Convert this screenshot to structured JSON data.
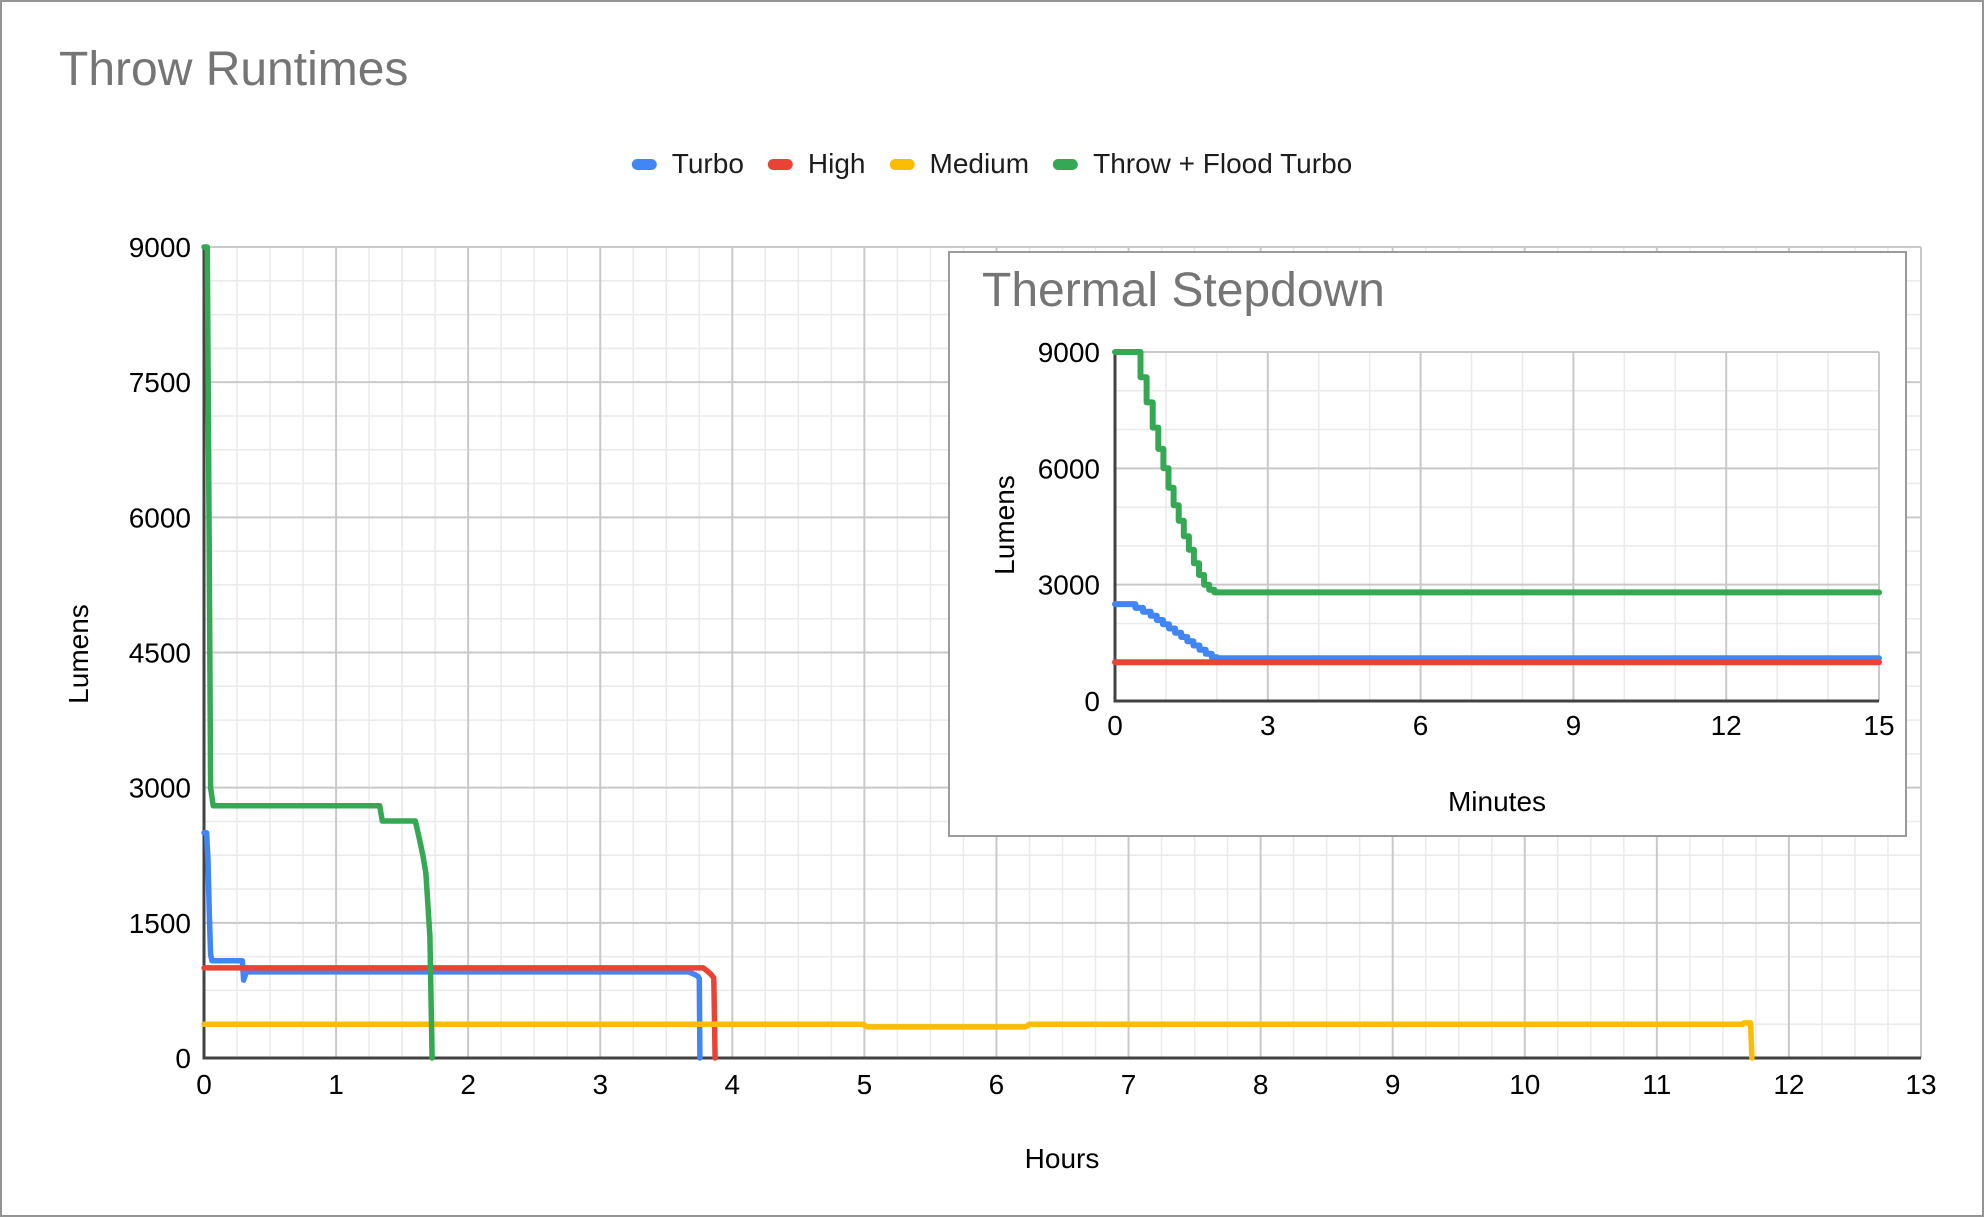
{
  "legend": {
    "position": "top"
  },
  "chart_data": [
    {
      "type": "line",
      "title": "Throw Runtimes",
      "xlabel": "Hours",
      "ylabel": "Lumens",
      "xlim": [
        0,
        13
      ],
      "ylim": [
        0,
        9000
      ],
      "x_major_ticks": [
        0,
        1,
        2,
        3,
        4,
        5,
        6,
        7,
        8,
        9,
        10,
        11,
        12,
        13
      ],
      "y_major_ticks": [
        0,
        1500,
        3000,
        4500,
        6000,
        7500,
        9000
      ],
      "x_minor_step": 0.25,
      "y_minor_step": 375,
      "grid": true,
      "legend_position": "top",
      "series": [
        {
          "name": "Turbo",
          "color": "#4285F4",
          "points": [
            [
              0,
              2500
            ],
            [
              0.02,
              2500
            ],
            [
              0.03,
              2200
            ],
            [
              0.04,
              1600
            ],
            [
              0.05,
              1150
            ],
            [
              0.06,
              1080
            ],
            [
              0.29,
              1080
            ],
            [
              0.3,
              865
            ],
            [
              0.32,
              955
            ],
            [
              3.67,
              955
            ],
            [
              3.71,
              930
            ],
            [
              3.74,
              905
            ],
            [
              3.75,
              880
            ],
            [
              3.755,
              0
            ]
          ]
        },
        {
          "name": "High",
          "color": "#EA4335",
          "points": [
            [
              0,
              1000
            ],
            [
              3.78,
              1000
            ],
            [
              3.81,
              965
            ],
            [
              3.84,
              925
            ],
            [
              3.86,
              890
            ],
            [
              3.87,
              0
            ]
          ]
        },
        {
          "name": "Medium",
          "color": "#FBBC04",
          "points": [
            [
              0,
              375
            ],
            [
              4.99,
              375
            ],
            [
              5.02,
              345
            ],
            [
              6.22,
              345
            ],
            [
              6.25,
              375
            ],
            [
              11.65,
              375
            ],
            [
              11.66,
              390
            ],
            [
              11.71,
              390
            ],
            [
              11.72,
              0
            ]
          ]
        },
        {
          "name": "Throw + Flood Turbo",
          "color": "#34A853",
          "points": [
            [
              0,
              9000
            ],
            [
              0.025,
              9000
            ],
            [
              0.04,
              5500
            ],
            [
              0.05,
              3000
            ],
            [
              0.07,
              2800
            ],
            [
              1.33,
              2800
            ],
            [
              1.35,
              2630
            ],
            [
              1.6,
              2630
            ],
            [
              1.62,
              2500
            ],
            [
              1.64,
              2370
            ],
            [
              1.66,
              2230
            ],
            [
              1.68,
              2050
            ],
            [
              1.695,
              1700
            ],
            [
              1.71,
              1350
            ],
            [
              1.727,
              0
            ]
          ]
        }
      ]
    },
    {
      "type": "line",
      "title": "Thermal Stepdown",
      "xlabel": "Minutes",
      "ylabel": "Lumens",
      "xlim": [
        0,
        15
      ],
      "ylim": [
        0,
        9000
      ],
      "x_major_ticks": [
        0,
        3,
        6,
        9,
        12,
        15
      ],
      "y_major_ticks": [
        0,
        3000,
        6000,
        9000
      ],
      "x_minor_step": 1,
      "y_minor_step": 1000,
      "grid": true,
      "legend_position": "none",
      "series": [
        {
          "name": "Turbo",
          "color": "#4285F4",
          "points": [
            [
              0,
              2500
            ],
            [
              0.4,
              2500
            ],
            [
              0.4,
              2400
            ],
            [
              0.55,
              2400
            ],
            [
              0.55,
              2300
            ],
            [
              0.7,
              2300
            ],
            [
              0.7,
              2200
            ],
            [
              0.82,
              2200
            ],
            [
              0.82,
              2090
            ],
            [
              0.94,
              2090
            ],
            [
              0.94,
              1980
            ],
            [
              1.06,
              1980
            ],
            [
              1.06,
              1870
            ],
            [
              1.18,
              1870
            ],
            [
              1.18,
              1760
            ],
            [
              1.3,
              1760
            ],
            [
              1.3,
              1650
            ],
            [
              1.42,
              1650
            ],
            [
              1.42,
              1540
            ],
            [
              1.54,
              1540
            ],
            [
              1.54,
              1430
            ],
            [
              1.66,
              1430
            ],
            [
              1.66,
              1320
            ],
            [
              1.78,
              1320
            ],
            [
              1.78,
              1220
            ],
            [
              1.9,
              1220
            ],
            [
              1.9,
              1130
            ],
            [
              2.0,
              1130
            ],
            [
              2.0,
              1100
            ],
            [
              15,
              1100
            ]
          ]
        },
        {
          "name": "High",
          "color": "#EA4335",
          "points": [
            [
              0,
              1000
            ],
            [
              15,
              1000
            ]
          ]
        },
        {
          "name": "Throw + Flood Turbo",
          "color": "#34A853",
          "points": [
            [
              0,
              9000
            ],
            [
              0.5,
              9000
            ],
            [
              0.5,
              8350
            ],
            [
              0.62,
              8350
            ],
            [
              0.62,
              7700
            ],
            [
              0.74,
              7700
            ],
            [
              0.74,
              7050
            ],
            [
              0.85,
              7050
            ],
            [
              0.85,
              6500
            ],
            [
              0.95,
              6500
            ],
            [
              0.95,
              6000
            ],
            [
              1.05,
              6000
            ],
            [
              1.05,
              5500
            ],
            [
              1.15,
              5500
            ],
            [
              1.15,
              5050
            ],
            [
              1.25,
              5050
            ],
            [
              1.25,
              4650
            ],
            [
              1.35,
              4650
            ],
            [
              1.35,
              4250
            ],
            [
              1.45,
              4250
            ],
            [
              1.45,
              3900
            ],
            [
              1.55,
              3900
            ],
            [
              1.55,
              3550
            ],
            [
              1.65,
              3550
            ],
            [
              1.65,
              3250
            ],
            [
              1.75,
              3250
            ],
            [
              1.75,
              3000
            ],
            [
              1.85,
              3000
            ],
            [
              1.85,
              2870
            ],
            [
              1.95,
              2870
            ],
            [
              1.95,
              2800
            ],
            [
              15,
              2800
            ]
          ]
        }
      ]
    }
  ],
  "style": {
    "title_color": "#757575",
    "axis_line_color": "#424242",
    "major_grid_color": "#c9c9c9",
    "minor_grid_color": "#eaeaea",
    "tick_label_color": "#000000",
    "background": "#ffffff"
  }
}
